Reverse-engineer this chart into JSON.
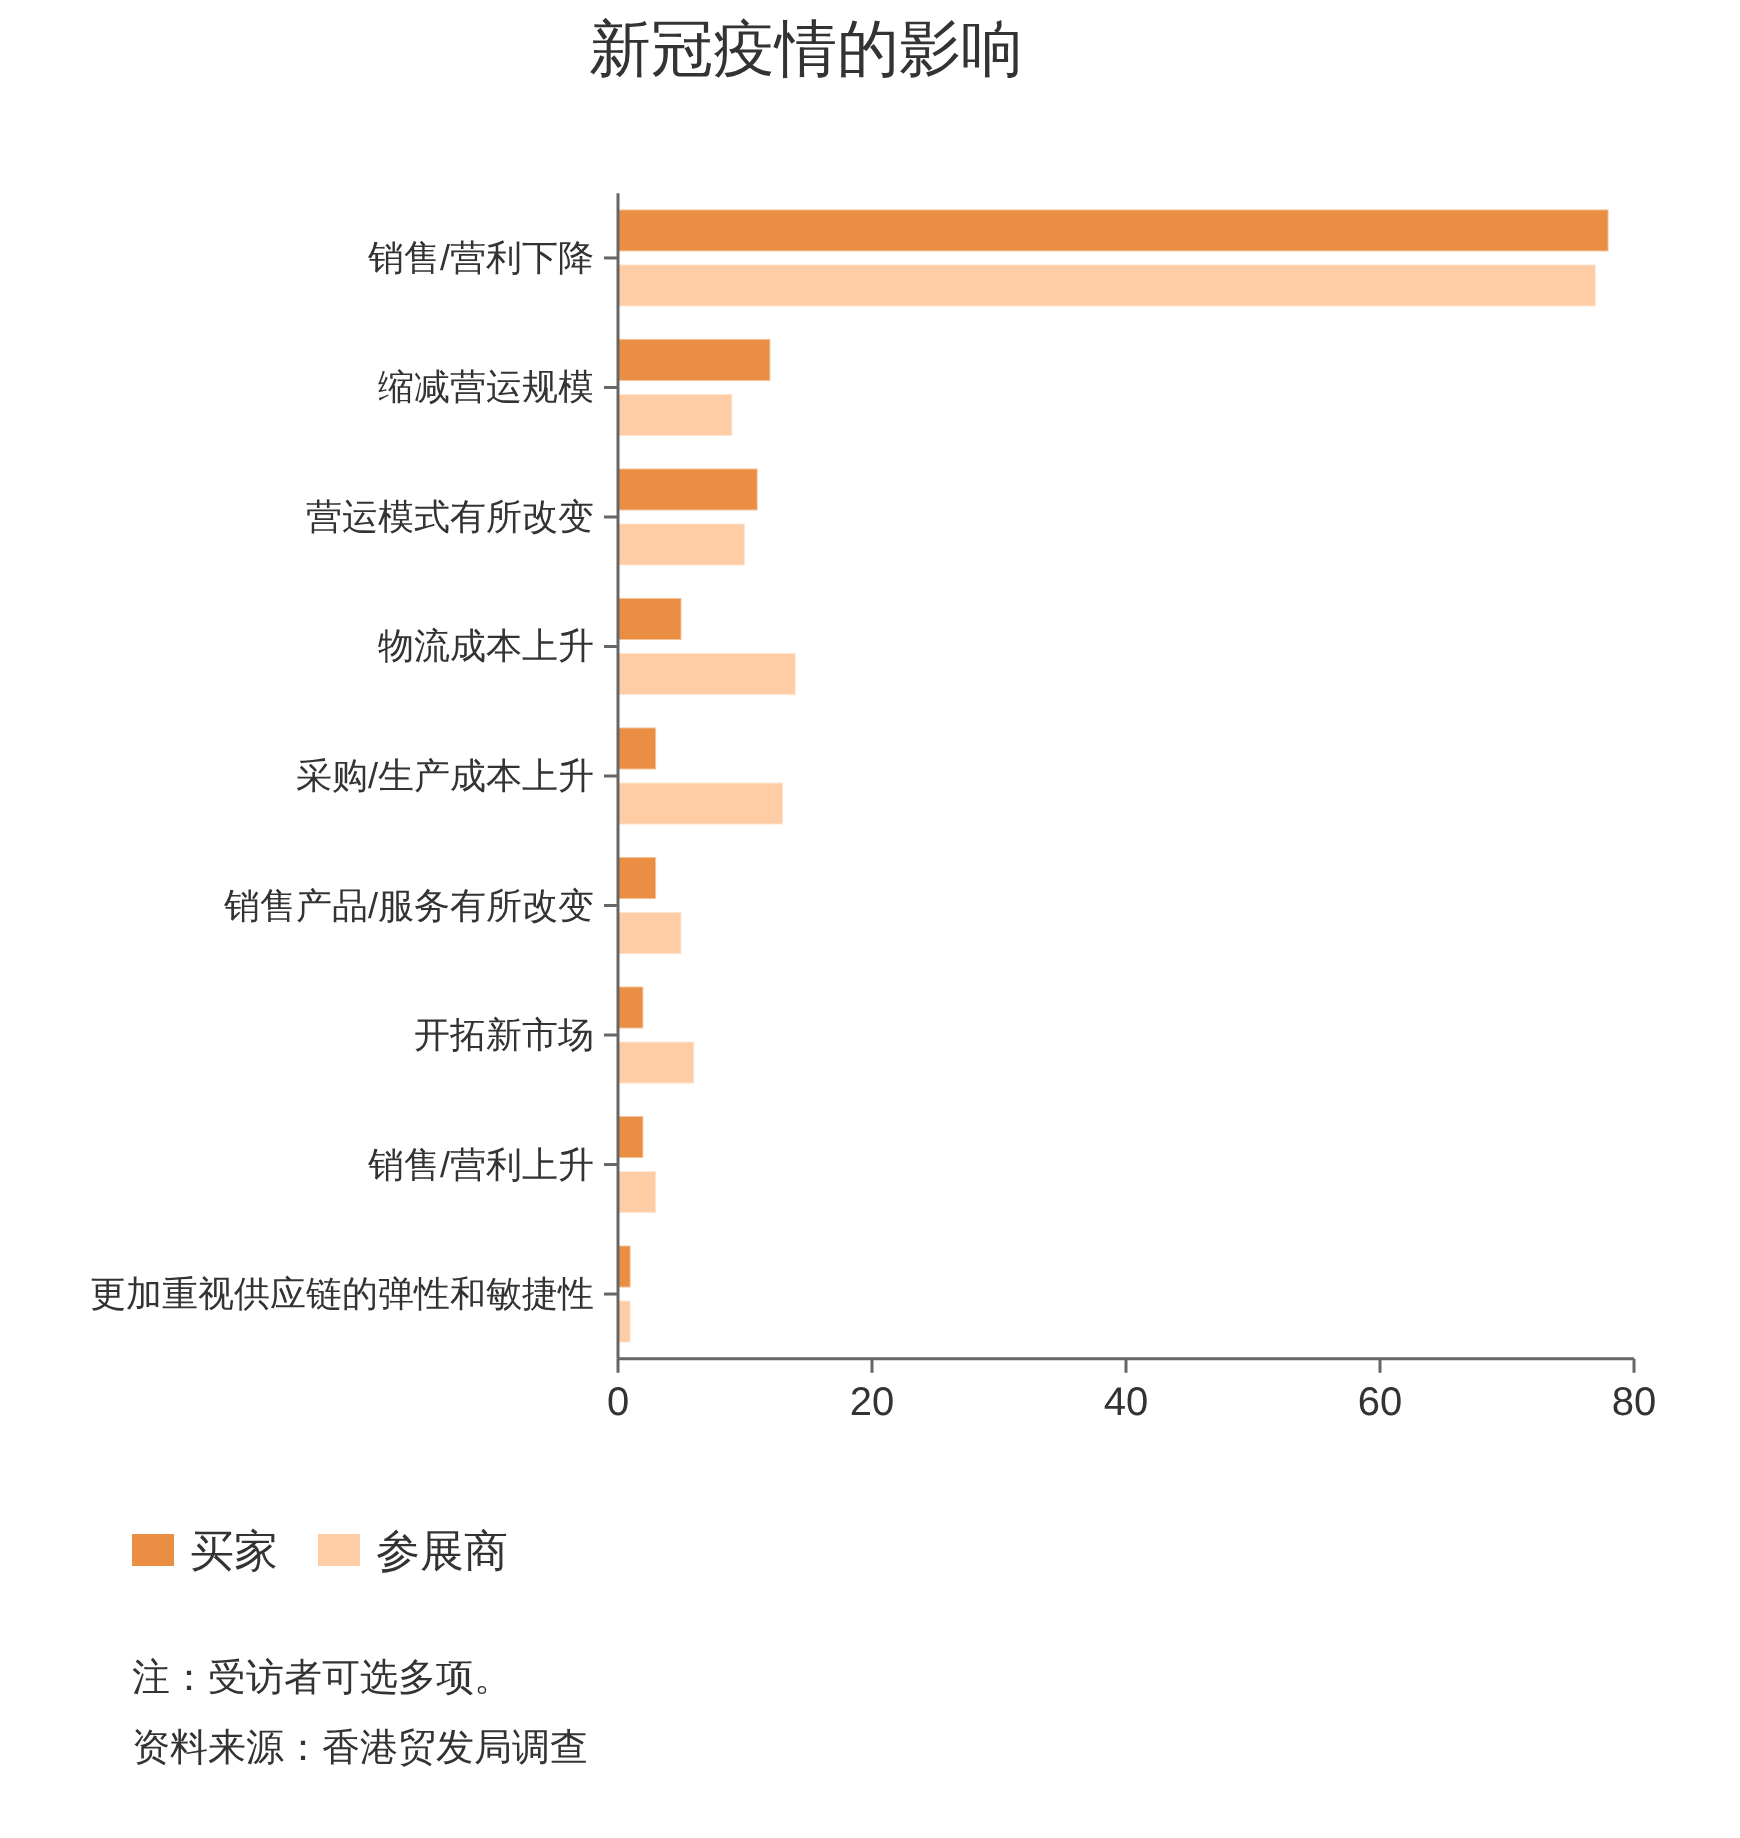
{
  "chart_data": {
    "type": "bar",
    "orientation": "horizontal",
    "title": "新冠疫情的影响",
    "categories": [
      "销售/营利下降",
      "缩减营运规模",
      "营运模式有所改变",
      "物流成本上升",
      "采购/生产成本上升",
      "销售产品/服务有所改变",
      "开拓新市场",
      "销售/营利上升",
      "更加重视供应链的弹性和敏捷性"
    ],
    "series": [
      {
        "name": "买家",
        "color": "#e98e43",
        "values": [
          78,
          12,
          11,
          5,
          3,
          3,
          2,
          2,
          1
        ]
      },
      {
        "name": "参展商",
        "color": "#fecda5",
        "values": [
          77,
          9,
          10,
          14,
          13,
          5,
          6,
          3,
          1
        ]
      }
    ],
    "xlim": [
      0,
      80
    ],
    "xticks": [
      0,
      20,
      40,
      60,
      80
    ],
    "legend": "bottom left",
    "annotations": [
      "注：受访者可选多项。",
      "资料来源：香港贸发局调查"
    ]
  }
}
